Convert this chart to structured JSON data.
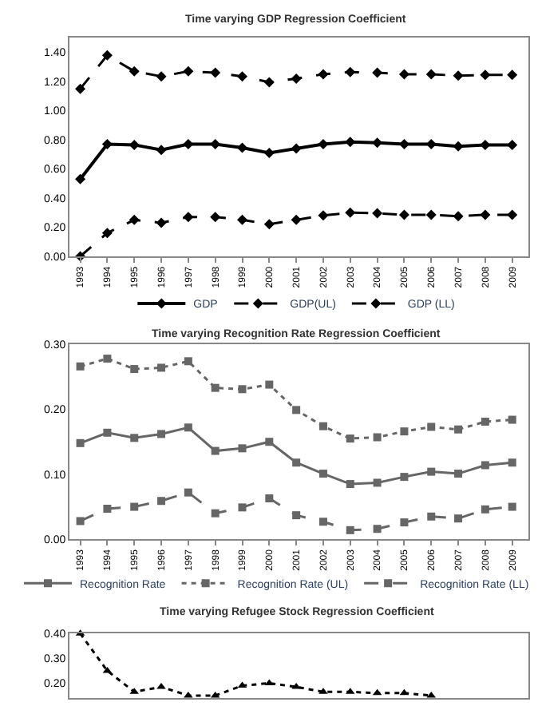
{
  "chart_data": [
    {
      "type": "line",
      "title": "Time varying GDP Regression Coefficient",
      "categories": [
        "1993",
        "1994",
        "1995",
        "1996",
        "1997",
        "1998",
        "1999",
        "2000",
        "2001",
        "2002",
        "2003",
        "2004",
        "2005",
        "2006",
        "2007",
        "2008",
        "2009"
      ],
      "ylim": [
        0,
        1.5
      ],
      "yticks": [
        {
          "value": 0,
          "label": "0.00"
        },
        {
          "value": 0.2,
          "label": "0.20"
        },
        {
          "value": 0.4,
          "label": "0.40"
        },
        {
          "value": 0.6,
          "label": "0.60"
        },
        {
          "value": 0.8,
          "label": "0.80"
        },
        {
          "value": 1,
          "label": "1.00"
        },
        {
          "value": 1.2,
          "label": "1.20"
        },
        {
          "value": 1.4,
          "label": "1.40"
        }
      ],
      "legend": "bottom",
      "series": [
        {
          "name": "GDP",
          "color": "#000000",
          "line_style": "solid",
          "marker": "diamond",
          "values": [
            0.53,
            0.77,
            0.765,
            0.73,
            0.77,
            0.77,
            0.745,
            0.71,
            0.74,
            0.77,
            0.785,
            0.78,
            0.77,
            0.77,
            0.755,
            0.765,
            0.765
          ]
        },
        {
          "name": "GDP(UL)",
          "color": "#000000",
          "line_style": "dashed",
          "marker": "diamond",
          "values": [
            1.15,
            1.38,
            1.27,
            1.235,
            1.27,
            1.26,
            1.235,
            1.195,
            1.22,
            1.25,
            1.265,
            1.26,
            1.25,
            1.25,
            1.24,
            1.245,
            1.245
          ]
        },
        {
          "name": "GDP (LL)",
          "color": "#000000",
          "line_style": "dashed",
          "marker": "diamond",
          "values": [
            0.0,
            0.16,
            0.25,
            0.23,
            0.27,
            0.27,
            0.25,
            0.22,
            0.25,
            0.28,
            0.3,
            0.295,
            0.285,
            0.285,
            0.275,
            0.285,
            0.285
          ]
        }
      ]
    },
    {
      "type": "line",
      "title": "Time varying Recognition Rate Regression Coefficient",
      "categories": [
        "1993",
        "1994",
        "1995",
        "1996",
        "1997",
        "1998",
        "1999",
        "2000",
        "2001",
        "2002",
        "2003",
        "2004",
        "2005",
        "2006",
        "2007",
        "2008",
        "2009"
      ],
      "ylim": [
        0,
        0.3
      ],
      "yticks": [
        {
          "value": 0,
          "label": "0.00"
        },
        {
          "value": 0.1,
          "label": "0.10"
        },
        {
          "value": 0.2,
          "label": "0.20"
        },
        {
          "value": 0.3,
          "label": "0.30"
        }
      ],
      "legend": "bottom",
      "series": [
        {
          "name": "Recognition Rate",
          "color": "#666666",
          "line_style": "solid",
          "marker": "square",
          "values": [
            0.148,
            0.164,
            0.156,
            0.162,
            0.172,
            0.136,
            0.14,
            0.15,
            0.118,
            0.101,
            0.085,
            0.087,
            0.096,
            0.104,
            0.101,
            0.114,
            0.118
          ]
        },
        {
          "name": "Recognition Rate (UL)",
          "color": "#666666",
          "line_style": "dotted",
          "marker": "square",
          "values": [
            0.266,
            0.278,
            0.262,
            0.264,
            0.274,
            0.233,
            0.231,
            0.238,
            0.199,
            0.174,
            0.155,
            0.157,
            0.166,
            0.173,
            0.169,
            0.181,
            0.184
          ]
        },
        {
          "name": "Recognition Rate (LL)",
          "color": "#666666",
          "line_style": "dashed",
          "marker": "square",
          "values": [
            0.028,
            0.047,
            0.05,
            0.059,
            0.072,
            0.04,
            0.049,
            0.063,
            0.037,
            0.027,
            0.014,
            0.016,
            0.026,
            0.035,
            0.032,
            0.046,
            0.05
          ]
        }
      ]
    },
    {
      "type": "line",
      "title": "Time varying Refugee Stock Regression Coefficient",
      "categories": [
        null,
        null,
        null,
        null,
        null,
        null,
        null,
        null,
        null,
        null,
        null,
        null,
        null,
        null,
        null,
        null,
        null
      ],
      "ylim": [
        0.14,
        0.4
      ],
      "yticks": [
        {
          "value": 0.2,
          "label": "0.20"
        },
        {
          "value": 0.3,
          "label": "0.30"
        },
        {
          "value": 0.4,
          "label": "0.40"
        }
      ],
      "tick_labels": "y",
      "series": [
        {
          "color": "#000000",
          "line_style": "dotted",
          "marker": "triangle",
          "values": [
            0.4,
            0.25,
            0.165,
            0.185,
            0.15,
            0.15,
            0.19,
            0.2,
            0.185,
            0.165,
            0.165,
            0.16,
            0.16,
            0.15,
            null,
            null,
            null
          ]
        }
      ]
    }
  ]
}
